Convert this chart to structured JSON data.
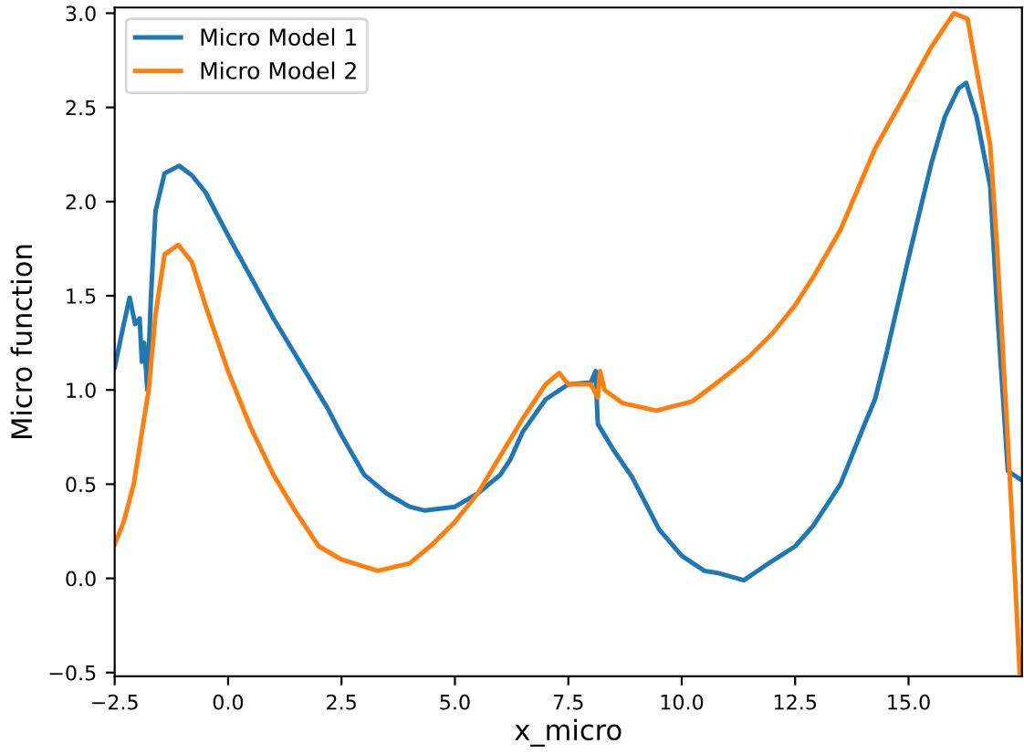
{
  "chart_data": {
    "type": "line",
    "xlabel": "x_micro",
    "ylabel": "Micro function",
    "xlim": [
      -2.5,
      17.5
    ],
    "ylim": [
      -0.52,
      3.03
    ],
    "xticks": [
      {
        "value": -2.5,
        "label": "−2.5"
      },
      {
        "value": 0,
        "label": "0.0"
      },
      {
        "value": 2.5,
        "label": "2.5"
      },
      {
        "value": 5,
        "label": "5.0"
      },
      {
        "value": 7.5,
        "label": "7.5"
      },
      {
        "value": 10,
        "label": "10.0"
      },
      {
        "value": 12.5,
        "label": "12.5"
      },
      {
        "value": 15,
        "label": "15.0"
      }
    ],
    "yticks": [
      {
        "value": -0.5,
        "label": "−0.5"
      },
      {
        "value": 0,
        "label": "0.0"
      },
      {
        "value": 0.5,
        "label": "0.5"
      },
      {
        "value": 1,
        "label": "1.0"
      },
      {
        "value": 1.5,
        "label": "1.5"
      },
      {
        "value": 2,
        "label": "2.0"
      },
      {
        "value": 2.5,
        "label": "2.5"
      },
      {
        "value": 3,
        "label": "3.0"
      }
    ],
    "grid": false,
    "legend": "top left",
    "marker": "none",
    "line_style": "solid",
    "series": [
      {
        "name": "Micro Model 1",
        "color": "#1f77b4",
        "x": [
          -2.5,
          -2.3,
          -2.17,
          -2.05,
          -1.95,
          -1.9,
          -1.85,
          -1.78,
          -1.7,
          -1.6,
          -1.5,
          -1.4,
          -1.08,
          -0.8,
          -0.5,
          0,
          0.5,
          1,
          1.5,
          2,
          2.2,
          2.5,
          3,
          3.5,
          4,
          4.34,
          5,
          5.5,
          6,
          6.22,
          6.5,
          7,
          7.5,
          8,
          8.1,
          8.15,
          8.5,
          8.9,
          9.5,
          10,
          10.5,
          10.77,
          11.37,
          11.98,
          12.5,
          12.9,
          13.5,
          14,
          14.26,
          14.5,
          15,
          15.5,
          15.8,
          16.1,
          16.27,
          16.5,
          16.8,
          16.95,
          17.19,
          17.5
        ],
        "values": [
          1.12,
          1.35,
          1.49,
          1.35,
          1.38,
          1.15,
          1.25,
          1.0,
          1.5,
          1.95,
          2.05,
          2.15,
          2.19,
          2.14,
          2.05,
          1.82,
          1.6,
          1.38,
          1.18,
          0.98,
          0.9,
          0.76,
          0.55,
          0.45,
          0.38,
          0.36,
          0.38,
          0.45,
          0.55,
          0.63,
          0.78,
          0.95,
          1.03,
          1.04,
          1.1,
          0.82,
          0.68,
          0.54,
          0.26,
          0.12,
          0.04,
          0.03,
          -0.01,
          0.09,
          0.17,
          0.28,
          0.5,
          0.8,
          0.95,
          1.18,
          1.7,
          2.2,
          2.45,
          2.6,
          2.63,
          2.45,
          2.08,
          1.44,
          0.57,
          0.52
        ]
      },
      {
        "name": "Micro Model 2",
        "color": "#ff7f0e",
        "x": [
          -2.5,
          -2.3,
          -2.08,
          -1.85,
          -1.75,
          -1.6,
          -1.4,
          -1.1,
          -0.8,
          -0.5,
          0,
          0.5,
          1,
          1.5,
          2,
          2.5,
          3.3,
          4,
          4.5,
          5,
          5.5,
          6,
          6.5,
          7,
          7.3,
          7.5,
          8,
          8.15,
          8.2,
          8.3,
          8.7,
          9.44,
          10.24,
          11,
          11.5,
          12,
          12.5,
          12.9,
          13.5,
          14.26,
          15,
          15.5,
          16,
          16.3,
          16.5,
          16.8,
          16.95,
          17.19,
          17.35,
          17.45
        ],
        "values": [
          0.18,
          0.3,
          0.5,
          0.85,
          1.0,
          1.4,
          1.72,
          1.77,
          1.68,
          1.45,
          1.1,
          0.8,
          0.55,
          0.35,
          0.17,
          0.1,
          0.04,
          0.08,
          0.18,
          0.3,
          0.45,
          0.65,
          0.85,
          1.03,
          1.09,
          1.03,
          1.03,
          0.96,
          1.1,
          1.0,
          0.93,
          0.89,
          0.94,
          1.08,
          1.18,
          1.3,
          1.45,
          1.6,
          1.85,
          2.28,
          2.6,
          2.82,
          3.0,
          2.97,
          2.7,
          2.3,
          1.76,
          0.73,
          -0.01,
          -0.5
        ]
      }
    ]
  }
}
